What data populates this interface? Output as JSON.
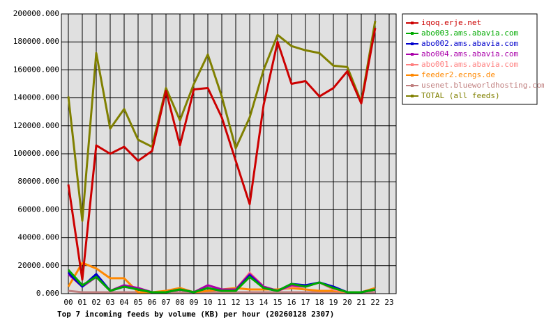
{
  "chart_data": {
    "type": "line",
    "title": "Top 7 incoming feeds by volume (KB) per hour (20260128 2307)",
    "categories": [
      "00",
      "01",
      "02",
      "03",
      "04",
      "05",
      "06",
      "07",
      "08",
      "09",
      "10",
      "11",
      "12",
      "13",
      "14",
      "15",
      "16",
      "17",
      "18",
      "19",
      "20",
      "21",
      "22",
      "23"
    ],
    "ylim": [
      0,
      200000
    ],
    "yticks": [
      {
        "value": 0,
        "label": "0.000"
      },
      {
        "value": 20000,
        "label": "20000.000"
      },
      {
        "value": 40000,
        "label": "40000.000"
      },
      {
        "value": 60000,
        "label": "60000.000"
      },
      {
        "value": 80000,
        "label": "80000.000"
      },
      {
        "value": 100000,
        "label": "100000.000"
      },
      {
        "value": 120000,
        "label": "120000.000"
      },
      {
        "value": 140000,
        "label": "140000.000"
      },
      {
        "value": 160000,
        "label": "160000.000"
      },
      {
        "value": 180000,
        "label": "180000.000"
      },
      {
        "value": 200000,
        "label": "200000.000"
      }
    ],
    "grid": true,
    "legend": "right",
    "series": [
      {
        "name": "iqoq.erje.net",
        "color": "#cc0000",
        "values": [
          78000,
          10000,
          106000,
          100000,
          105000,
          95000,
          102000,
          145000,
          106000,
          146000,
          147000,
          126000,
          95000,
          64000,
          135000,
          180000,
          150000,
          152000,
          141000,
          147000,
          159000,
          136000,
          190000,
          null
        ]
      },
      {
        "name": "abo003.ams.abavia.com",
        "color": "#00aa00",
        "values": [
          17000,
          6000,
          12000,
          2000,
          5000,
          3000,
          1000,
          1000,
          3000,
          1000,
          4000,
          2000,
          2000,
          12000,
          4000,
          2000,
          7000,
          5000,
          8000,
          4000,
          1000,
          1000,
          3000,
          null
        ]
      },
      {
        "name": "abo002.ams.abavia.com",
        "color": "#0000cc",
        "values": [
          15000,
          5000,
          14000,
          2000,
          5000,
          3000,
          1000,
          1000,
          3000,
          1000,
          4000,
          2000,
          2000,
          13000,
          4000,
          2000,
          7000,
          6000,
          8000,
          5000,
          1000,
          1000,
          3000,
          null
        ]
      },
      {
        "name": "abo004.ams.abavia.com",
        "color": "#aa00aa",
        "values": [
          14000,
          5000,
          12000,
          2000,
          6000,
          4000,
          1000,
          1000,
          3000,
          1000,
          6000,
          3000,
          3000,
          14000,
          5000,
          2000,
          6000,
          5000,
          8000,
          4000,
          1000,
          1000,
          3000,
          null
        ]
      },
      {
        "name": "abo001.ams.abavia.com",
        "color": "#ff8080",
        "values": [
          14000,
          5000,
          12000,
          2000,
          6000,
          4000,
          1000,
          1000,
          3000,
          1000,
          6000,
          3000,
          3000,
          15000,
          5000,
          2000,
          5000,
          5000,
          8000,
          3000,
          1000,
          1000,
          3000,
          null
        ]
      },
      {
        "name": "feeder2.ecngs.de",
        "color": "#ff8800",
        "values": [
          5000,
          22000,
          18000,
          11000,
          11000,
          1000,
          1000,
          2000,
          4000,
          1000,
          2000,
          3000,
          4000,
          3000,
          3000,
          3000,
          4000,
          3000,
          2000,
          2000,
          1000,
          1000,
          4000,
          null
        ]
      },
      {
        "name": "usenet.blueworldhosting.com",
        "color": "#c08080",
        "values": [
          2000,
          1000,
          1000,
          1000,
          1000,
          1000,
          1000,
          1000,
          1000,
          1000,
          1000,
          1000,
          1000,
          1000,
          1000,
          1000,
          1000,
          1000,
          1000,
          1000,
          1000,
          1000,
          1000,
          null
        ]
      },
      {
        "name": "TOTAL (all feeds)",
        "color": "#808000",
        "values": [
          141000,
          52000,
          172000,
          118000,
          132000,
          110000,
          105000,
          147000,
          124000,
          150000,
          171000,
          141000,
          104000,
          126000,
          160000,
          185000,
          177000,
          174000,
          172000,
          163000,
          162000,
          137000,
          195000,
          null
        ]
      }
    ]
  }
}
